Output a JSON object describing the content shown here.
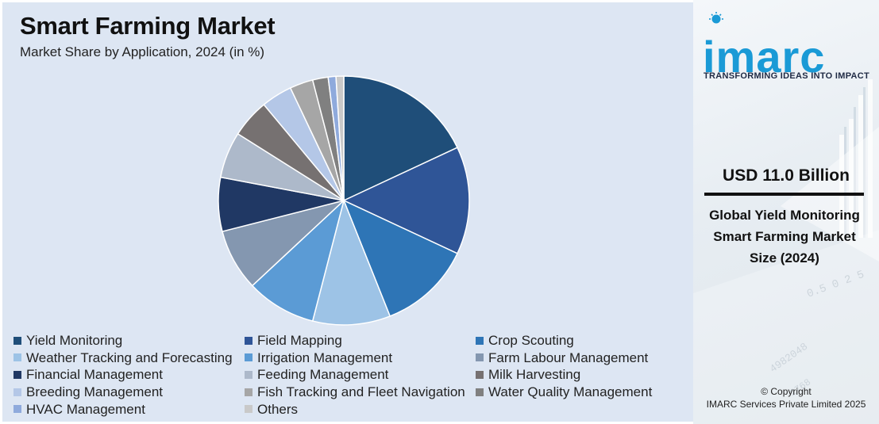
{
  "chart_data": {
    "type": "pie",
    "title": "Smart Farming Market",
    "subtitle": "Market Share by Application, 2024 (in %)",
    "legend_position": "bottom",
    "slices": [
      {
        "label": "Yield Monitoring",
        "value": 18,
        "color": "#1f4e79"
      },
      {
        "label": "Field Mapping",
        "value": 14,
        "color": "#2f5597"
      },
      {
        "label": "Crop Scouting",
        "value": 12,
        "color": "#2e75b6"
      },
      {
        "label": "Weather Tracking and Forecasting",
        "value": 10,
        "color": "#9dc3e6"
      },
      {
        "label": "Irrigation Management",
        "value": 9,
        "color": "#5b9bd5"
      },
      {
        "label": "Farm Labour Management",
        "value": 8,
        "color": "#8497b0"
      },
      {
        "label": "Financial Management",
        "value": 7,
        "color": "#203864"
      },
      {
        "label": "Feeding Management",
        "value": 6,
        "color": "#adb9ca"
      },
      {
        "label": "Milk Harvesting",
        "value": 5,
        "color": "#767171"
      },
      {
        "label": "Breeding Management",
        "value": 4,
        "color": "#b4c7e7"
      },
      {
        "label": "Fish Tracking and Fleet Navigation",
        "value": 3,
        "color": "#a6a6a6"
      },
      {
        "label": "Water Quality Management",
        "value": 2,
        "color": "#808080"
      },
      {
        "label": "HVAC Management",
        "value": 1,
        "color": "#8faadc"
      },
      {
        "label": "Others",
        "value": 1,
        "color": "#c9c9c9"
      }
    ]
  },
  "brand": {
    "logo": "imarc",
    "tagline": "TRANSFORMING IDEAS INTO IMPACT",
    "accent": "#1a9ad6"
  },
  "highlight": {
    "value": "USD 11.0 Billion",
    "description": "Global Yield Monitoring Smart Farming Market Size (2024)"
  },
  "footer": {
    "copyright_line1": "© Copyright",
    "copyright_line2": "IMARC Services Private Limited 2025"
  }
}
